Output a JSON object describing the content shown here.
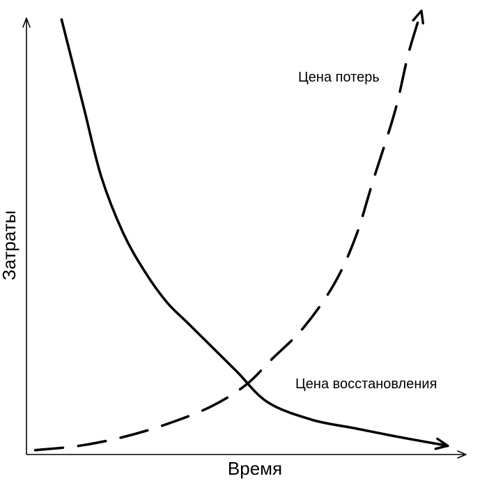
{
  "chart_data": {
    "type": "line",
    "title": "",
    "xlabel": "Время",
    "ylabel": "Затраты",
    "grid": false,
    "legend": "none",
    "series": [
      {
        "name": "Цена восстановления",
        "style": "solid",
        "color": "#000000",
        "points": [
          [
            0.08,
            1.0
          ],
          [
            0.13,
            0.8
          ],
          [
            0.17,
            0.64
          ],
          [
            0.22,
            0.51
          ],
          [
            0.27,
            0.42
          ],
          [
            0.32,
            0.35
          ],
          [
            0.37,
            0.3
          ],
          [
            0.42,
            0.25
          ],
          [
            0.48,
            0.19
          ],
          [
            0.55,
            0.12
          ],
          [
            0.65,
            0.08
          ],
          [
            0.75,
            0.06
          ],
          [
            0.85,
            0.04
          ],
          [
            0.96,
            0.02
          ]
        ]
      },
      {
        "name": "Цена потерь",
        "style": "dashed",
        "color": "#000000",
        "points": [
          [
            0.02,
            0.01
          ],
          [
            0.12,
            0.02
          ],
          [
            0.22,
            0.04
          ],
          [
            0.32,
            0.07
          ],
          [
            0.42,
            0.11
          ],
          [
            0.5,
            0.16
          ],
          [
            0.56,
            0.22
          ],
          [
            0.63,
            0.29
          ],
          [
            0.7,
            0.39
          ],
          [
            0.75,
            0.5
          ],
          [
            0.79,
            0.63
          ],
          [
            0.84,
            0.79
          ],
          [
            0.87,
            0.92
          ],
          [
            0.9,
            1.02
          ]
        ]
      }
    ],
    "annotations": [
      {
        "text": "Цена потерь",
        "series": "Цена потерь"
      },
      {
        "text": "Цена восстановления",
        "series": "Цена восстановления"
      }
    ]
  }
}
